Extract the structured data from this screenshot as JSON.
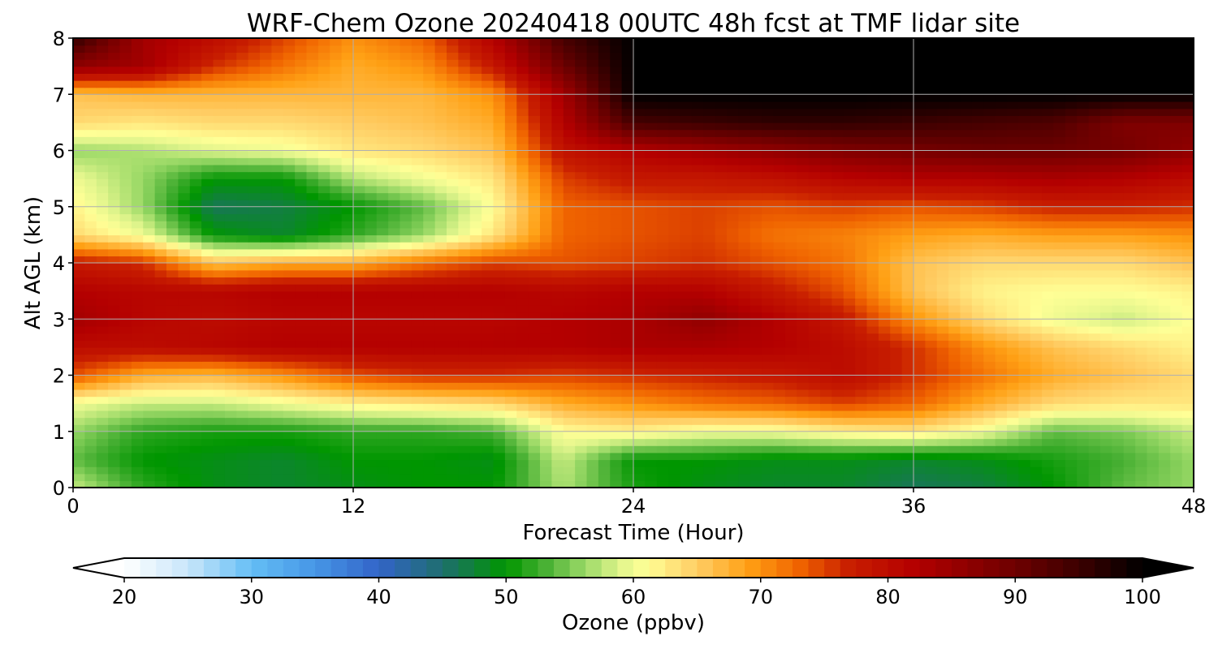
{
  "chart_data": {
    "type": "heatmap",
    "title": "WRF-Chem Ozone  20240418 00UTC 48h fcst at TMF lidar site",
    "xlabel": "Forecast Time (Hour)",
    "ylabel": "Alt AGL (km)",
    "xlim": [
      0,
      48
    ],
    "ylim": [
      0,
      8
    ],
    "x_ticks": [
      0,
      12,
      24,
      36,
      48
    ],
    "y_ticks": [
      0,
      1,
      2,
      3,
      4,
      5,
      6,
      7,
      8
    ],
    "grid": true,
    "colorbar": {
      "label": "Ozone  (ppbv)",
      "min": 20,
      "max": 100,
      "ticks": [
        20,
        30,
        40,
        50,
        60,
        70,
        80,
        90,
        100
      ],
      "extend": "both",
      "low_color": "#ffffff",
      "high_color": "#000000"
    },
    "grid_x": [
      0,
      3,
      6,
      9,
      12,
      15,
      18,
      21,
      24,
      27,
      30,
      33,
      36,
      39,
      42,
      45,
      48
    ],
    "grid_y": [
      0,
      0.5,
      1,
      1.5,
      2,
      2.5,
      3,
      3.5,
      4,
      4.5,
      5,
      5.5,
      6,
      6.5,
      7,
      7.5,
      8
    ],
    "z": [
      [
        58,
        52,
        49,
        48,
        49,
        50,
        50,
        57,
        51,
        49,
        48,
        48,
        46,
        47,
        50,
        54,
        56
      ],
      [
        54,
        50,
        49,
        48,
        50,
        50,
        49,
        58,
        50,
        50,
        49,
        49,
        48,
        49,
        51,
        53,
        56
      ],
      [
        56,
        52,
        51,
        51,
        52,
        52,
        53,
        61,
        62,
        60,
        60,
        62,
        63,
        60,
        54,
        55,
        58
      ],
      [
        60,
        58,
        58,
        60,
        62,
        63,
        64,
        68,
        70,
        72,
        73,
        75,
        73,
        68,
        64,
        63,
        63
      ],
      [
        74,
        68,
        67,
        70,
        74,
        76,
        76,
        75,
        76,
        77,
        78,
        80,
        76,
        72,
        68,
        66,
        64
      ],
      [
        80,
        80,
        81,
        82,
        82,
        82,
        82,
        82,
        83,
        83,
        82,
        80,
        76,
        70,
        66,
        64,
        62
      ],
      [
        84,
        81,
        80,
        81,
        81,
        81,
        81,
        82,
        83,
        86,
        82,
        78,
        70,
        64,
        60,
        58,
        61
      ],
      [
        82,
        81,
        81,
        82,
        82,
        82,
        82,
        81,
        82,
        82,
        78,
        74,
        66,
        62,
        61,
        61,
        62
      ],
      [
        78,
        76,
        66,
        68,
        68,
        72,
        75,
        74,
        75,
        76,
        74,
        72,
        66,
        64,
        64,
        64,
        66
      ],
      [
        64,
        60,
        50,
        48,
        52,
        56,
        63,
        73,
        74,
        75,
        72,
        71,
        69,
        68,
        69,
        69,
        70
      ],
      [
        62,
        56,
        46,
        47,
        50,
        54,
        61,
        73,
        74,
        75,
        74,
        75,
        74,
        75,
        77,
        77,
        76
      ],
      [
        60,
        56,
        50,
        50,
        57,
        60,
        63,
        75,
        78,
        78,
        79,
        81,
        82,
        82,
        83,
        82,
        80
      ],
      [
        56,
        57,
        59,
        60,
        63,
        64,
        66,
        79,
        82,
        84,
        86,
        88,
        89,
        90,
        90,
        89,
        86
      ],
      [
        64,
        63,
        64,
        64,
        65,
        66,
        68,
        82,
        94,
        95,
        96,
        96,
        95,
        94,
        93,
        88,
        88
      ],
      [
        66,
        67,
        67,
        67,
        67,
        67,
        70,
        84,
        100,
        100,
        100,
        100,
        100,
        100,
        100,
        100,
        100
      ],
      [
        86,
        84,
        76,
        72,
        68,
        70,
        78,
        90,
        100,
        100,
        100,
        100,
        100,
        100,
        100,
        100,
        100
      ],
      [
        96,
        84,
        80,
        75,
        70,
        73,
        82,
        94,
        100,
        100,
        100,
        100,
        100,
        100,
        100,
        100,
        100
      ]
    ]
  }
}
